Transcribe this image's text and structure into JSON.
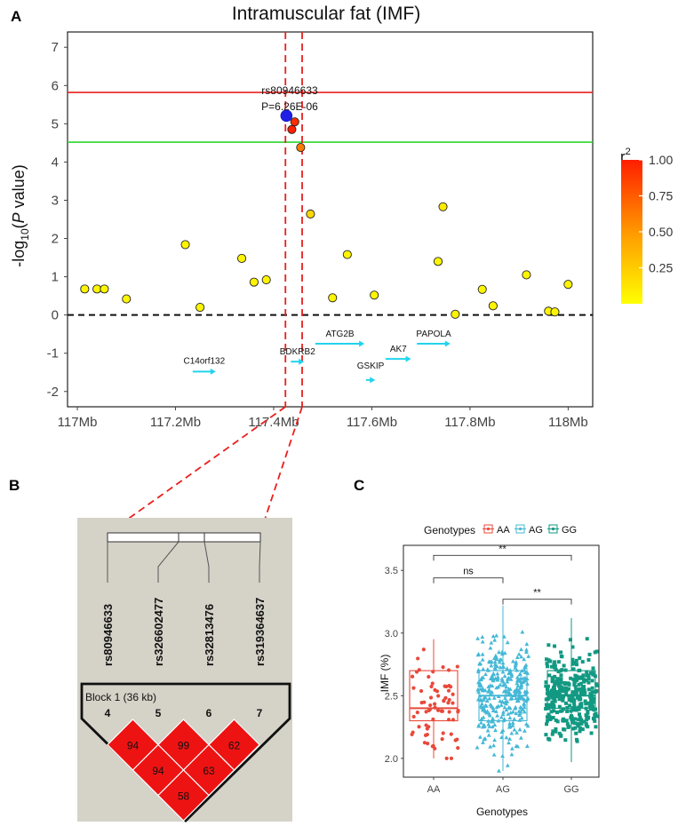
{
  "panel_labels": {
    "a": "A",
    "b": "B",
    "c": "C"
  },
  "chart_data": [
    {
      "panel": "A",
      "type": "scatter",
      "title": "Intramuscular fat (IMF)",
      "xlabel": "",
      "ylabel_main": "-log",
      "ylabel_sub": "10",
      "ylabel_open": "(",
      "ylabel_italic": "P",
      "ylabel_rest": " value)",
      "xlim": [
        116.98,
        118.05
      ],
      "ylim": [
        -2.4,
        7.4
      ],
      "x_ticks": [
        117.0,
        117.2,
        117.4,
        117.6,
        117.8,
        118.0
      ],
      "x_tick_labels": [
        "117Mb",
        "117.2Mb",
        "117.4Mb",
        "117.6Mb",
        "117.8Mb",
        "118Mb"
      ],
      "y_ticks": [
        -2,
        -1,
        0,
        1,
        2,
        3,
        4,
        5,
        6,
        7
      ],
      "threshold_lines": [
        {
          "y": 5.82,
          "color": "#e8201e",
          "style": "solid"
        },
        {
          "y": 4.52,
          "color": "#2bd52b",
          "style": "solid"
        },
        {
          "y": 0,
          "color": "#111111",
          "style": "dashed"
        }
      ],
      "highlight_region": [
        117.424,
        117.458
      ],
      "lead_snp": {
        "id": "rs80946633",
        "x": 117.426,
        "y": 5.21,
        "label_1": "rs80946633",
        "label_2": "P=6.26E-06",
        "color": "#1f1fe6"
      },
      "points": [
        {
          "x": 117.015,
          "y": 0.68,
          "r2": 0.05
        },
        {
          "x": 117.04,
          "y": 0.68,
          "r2": 0.05
        },
        {
          "x": 117.055,
          "y": 0.68,
          "r2": 0.05
        },
        {
          "x": 117.1,
          "y": 0.42,
          "r2": 0.05
        },
        {
          "x": 117.22,
          "y": 1.84,
          "r2": 0.05
        },
        {
          "x": 117.25,
          "y": 0.2,
          "r2": 0.05
        },
        {
          "x": 117.335,
          "y": 1.48,
          "r2": 0.05
        },
        {
          "x": 117.36,
          "y": 0.86,
          "r2": 0.05
        },
        {
          "x": 117.385,
          "y": 0.92,
          "r2": 0.05
        },
        {
          "x": 117.443,
          "y": 5.05,
          "r2": 0.94
        },
        {
          "x": 117.437,
          "y": 4.85,
          "r2": 0.99
        },
        {
          "x": 117.455,
          "y": 4.38,
          "r2": 0.62
        },
        {
          "x": 117.475,
          "y": 2.64,
          "r2": 0.2
        },
        {
          "x": 117.52,
          "y": 0.45,
          "r2": 0.05
        },
        {
          "x": 117.55,
          "y": 1.58,
          "r2": 0.05
        },
        {
          "x": 117.605,
          "y": 0.52,
          "r2": 0.05
        },
        {
          "x": 117.735,
          "y": 1.4,
          "r2": 0.05
        },
        {
          "x": 117.745,
          "y": 2.83,
          "r2": 0.1
        },
        {
          "x": 117.77,
          "y": 0.02,
          "r2": 0.05
        },
        {
          "x": 117.825,
          "y": 0.67,
          "r2": 0.05
        },
        {
          "x": 117.847,
          "y": 0.24,
          "r2": 0.05
        },
        {
          "x": 117.915,
          "y": 1.05,
          "r2": 0.05
        },
        {
          "x": 117.96,
          "y": 0.1,
          "r2": 0.05
        },
        {
          "x": 117.973,
          "y": 0.08,
          "r2": 0.05
        },
        {
          "x": 118.0,
          "y": 0.8,
          "r2": 0.05
        }
      ],
      "genes": [
        {
          "name": "C14orf132",
          "start": 117.235,
          "end": 117.282,
          "y": -1.48,
          "label_dy": -9
        },
        {
          "name": "BDKRB2",
          "start": 117.435,
          "end": 117.462,
          "y": -1.22,
          "label_dy": -8
        },
        {
          "name": "ATG2B",
          "start": 117.485,
          "end": 117.585,
          "y": -0.75,
          "label_dy": -8
        },
        {
          "name": "GSKIP",
          "start": 117.588,
          "end": 117.607,
          "y": -1.7,
          "label_dy": -13
        },
        {
          "name": "AK7",
          "start": 117.628,
          "end": 117.68,
          "y": -1.15,
          "label_dy": -8
        },
        {
          "name": "PAPOLA",
          "start": 117.692,
          "end": 117.76,
          "y": -0.75,
          "label_dy": -8
        }
      ],
      "colorbar": {
        "title": "r",
        "title_sup": "2",
        "ticks": [
          1.0,
          0.75,
          0.5,
          0.25
        ],
        "tick_labels": [
          "1.00",
          "0.75",
          "0.50",
          "0.25"
        ],
        "low_color": "#ffff00",
        "mid_color": "#ff9800",
        "high_color": "#ff1e00"
      }
    },
    {
      "panel": "B",
      "type": "heatmap",
      "snps": [
        "rs80946633",
        "rs326602477",
        "rs32813476",
        "rs319364637"
      ],
      "block_label": "Block 1 (36 kb)",
      "marker_numbers": [
        "4",
        "5",
        "6",
        "7"
      ],
      "ld_pairs": [
        {
          "pair": [
            0,
            1
          ],
          "value": 94
        },
        {
          "pair": [
            1,
            2
          ],
          "value": 99
        },
        {
          "pair": [
            2,
            3
          ],
          "value": 62
        },
        {
          "pair": [
            0,
            2
          ],
          "value": 94
        },
        {
          "pair": [
            1,
            3
          ],
          "value": 63
        },
        {
          "pair": [
            0,
            3
          ],
          "value": 58
        }
      ],
      "cell_color": "#ee1313"
    },
    {
      "panel": "C",
      "type": "box",
      "legend_title": "Genotypes",
      "categories": [
        "AA",
        "AG",
        "GG"
      ],
      "colors": [
        "#e8493a",
        "#45b8d6",
        "#129982"
      ],
      "xlabel": "Genotypes",
      "ylabel": "IMF (%)",
      "ylim": [
        1.85,
        3.7
      ],
      "y_ticks": [
        2.0,
        2.5,
        3.0,
        3.5
      ],
      "y_tick_labels": [
        "2.0",
        "2.5",
        "3.0",
        "3.5"
      ],
      "boxes": [
        {
          "group": "AA",
          "q1": 2.3,
          "median": 2.4,
          "q3": 2.7,
          "whisker_low": 2.0,
          "whisker_high": 2.95,
          "n": 70
        },
        {
          "group": "AG",
          "q1": 2.3,
          "median": 2.5,
          "q3": 2.7,
          "whisker_low": 1.9,
          "whisker_high": 3.22,
          "n": 330
        },
        {
          "group": "GG",
          "q1": 2.4,
          "median": 2.5,
          "q3": 2.7,
          "whisker_low": 1.97,
          "whisker_high": 3.12,
          "n": 360
        }
      ],
      "significance": [
        {
          "pair": [
            "AA",
            "GG"
          ],
          "y": 3.62,
          "label": "**"
        },
        {
          "pair": [
            "AA",
            "AG"
          ],
          "y": 3.44,
          "label": "ns"
        },
        {
          "pair": [
            "AG",
            "GG"
          ],
          "y": 3.27,
          "label": "**"
        }
      ]
    }
  ]
}
